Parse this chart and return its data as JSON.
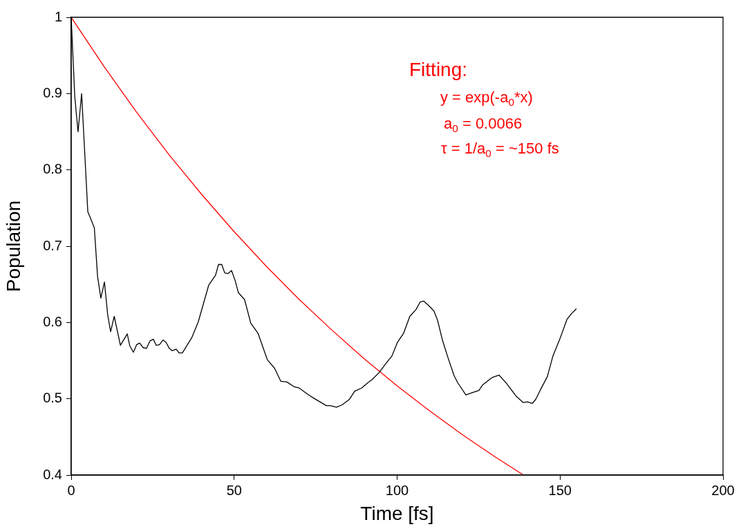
{
  "chart_data": {
    "type": "line",
    "xlabel": "Time [fs]",
    "ylabel": "Population",
    "xlim": [
      0,
      200
    ],
    "xticks": [
      0,
      50,
      100,
      150,
      200
    ],
    "ylim": [
      0.4,
      1
    ],
    "yticks": [
      0.4,
      0.5,
      0.6,
      0.7,
      0.8,
      0.9,
      1
    ],
    "grid": false,
    "legend": false,
    "marker": "none",
    "line_style": "solid",
    "series": [
      {
        "color": "#000000",
        "x": [
          0,
          1.1,
          2.1,
          3.2,
          5.1,
          5.7,
          7.1,
          8.1,
          9.1,
          10.2,
          11.2,
          12.1,
          13.2,
          15.1,
          17.2,
          18.0,
          19.1,
          20.1,
          21.0,
          22.1,
          23.1,
          24.2,
          25.2,
          26.1,
          27.1,
          28.2,
          29.1,
          30.1,
          31.0,
          32.2,
          33.1,
          34.1,
          37.1,
          39.0,
          42.2,
          44.3,
          45.2,
          46.2,
          47.1,
          48.1,
          49.2,
          50.3,
          51.3,
          53.2,
          55.1,
          57.3,
          60.2,
          62.4,
          64.3,
          66.2,
          68.3,
          70.0,
          72.5,
          74.7,
          78.3,
          79.5,
          81.4,
          83.1,
          85.3,
          87.0,
          89.1,
          91.0,
          92.3,
          94.4,
          96.9,
          98.4,
          100.1,
          102.0,
          103.9,
          105.8,
          107.1,
          108.2,
          109.7,
          111.3,
          112.4,
          113.9,
          115.6,
          117.5,
          118.6,
          121.1,
          123.0,
          125.1,
          126.2,
          129.2,
          131.3,
          133.6,
          136.6,
          138.7,
          140.0,
          141.5,
          142.5,
          144.0,
          146.1,
          147.8,
          149.9,
          152.1,
          153.6,
          155.0
        ],
        "values": [
          1.0,
          0.896,
          0.85,
          0.9,
          0.745,
          0.739,
          0.724,
          0.66,
          0.632,
          0.653,
          0.61,
          0.588,
          0.608,
          0.57,
          0.585,
          0.569,
          0.561,
          0.571,
          0.573,
          0.567,
          0.566,
          0.576,
          0.578,
          0.57,
          0.571,
          0.577,
          0.574,
          0.566,
          0.563,
          0.565,
          0.56,
          0.56,
          0.581,
          0.601,
          0.649,
          0.662,
          0.676,
          0.676,
          0.665,
          0.664,
          0.668,
          0.655,
          0.639,
          0.63,
          0.599,
          0.586,
          0.551,
          0.54,
          0.523,
          0.522,
          0.516,
          0.514,
          0.506,
          0.5,
          0.491,
          0.491,
          0.489,
          0.492,
          0.499,
          0.51,
          0.514,
          0.521,
          0.525,
          0.534,
          0.548,
          0.556,
          0.574,
          0.586,
          0.608,
          0.617,
          0.627,
          0.628,
          0.622,
          0.615,
          0.603,
          0.577,
          0.554,
          0.53,
          0.521,
          0.505,
          0.508,
          0.511,
          0.518,
          0.528,
          0.531,
          0.52,
          0.503,
          0.495,
          0.496,
          0.494,
          0.499,
          0.512,
          0.529,
          0.556,
          0.578,
          0.604,
          0.612,
          0.618
        ]
      },
      {
        "color": "#ff0000",
        "x": [
          0,
          10,
          20,
          30,
          40,
          50,
          60,
          70,
          80,
          90,
          100,
          110,
          120,
          130,
          138.8
        ],
        "values": [
          1.0,
          0.936,
          0.876,
          0.82,
          0.768,
          0.719,
          0.673,
          0.63,
          0.59,
          0.552,
          0.517,
          0.484,
          0.453,
          0.424,
          0.4
        ]
      }
    ],
    "annotations": [
      "Fitting:",
      "y = exp(-a$_{0}$*x)",
      "a$_{0}$ = 0.0066",
      "τ = 1/a$_{0}$ = ~150 fs"
    ]
  }
}
